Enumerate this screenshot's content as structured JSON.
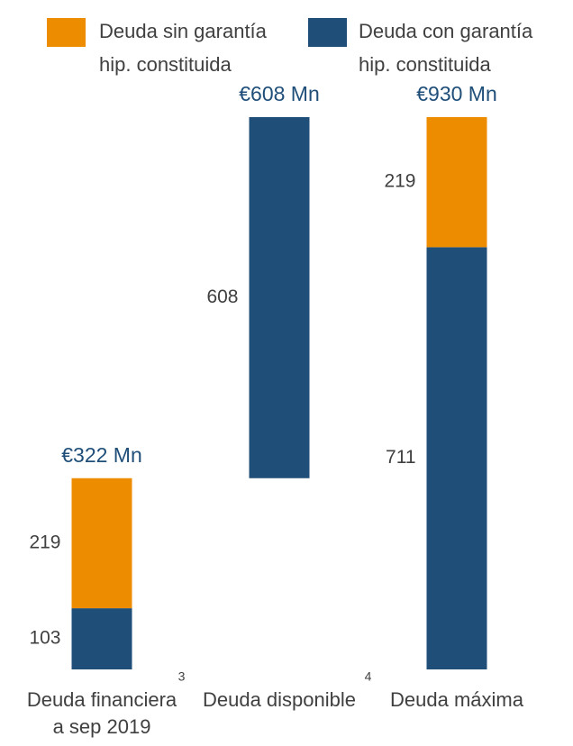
{
  "chart_data": {
    "type": "waterfall",
    "categories": [
      "Deuda financiera a sep 2019",
      "Deuda disponible",
      "Deuda máxima"
    ],
    "category_notes": [
      "3",
      "4",
      null
    ],
    "measures": [
      "absolute",
      "relative",
      "total"
    ],
    "series": [
      {
        "name": "Deuda con garantía hip. constituida",
        "color": "#1f4e79",
        "values": [
          103,
          608,
          711
        ]
      },
      {
        "name": "Deuda sin garantía hip. constituida",
        "color": "#ee8c00",
        "values": [
          219,
          null,
          219
        ]
      }
    ],
    "legend_order": [
      1,
      0
    ],
    "totals": [
      322,
      608,
      930
    ],
    "total_labels": [
      "€322 Mn",
      "€608 Mn",
      "€930 Mn"
    ],
    "ylim": [
      0,
      930
    ]
  }
}
